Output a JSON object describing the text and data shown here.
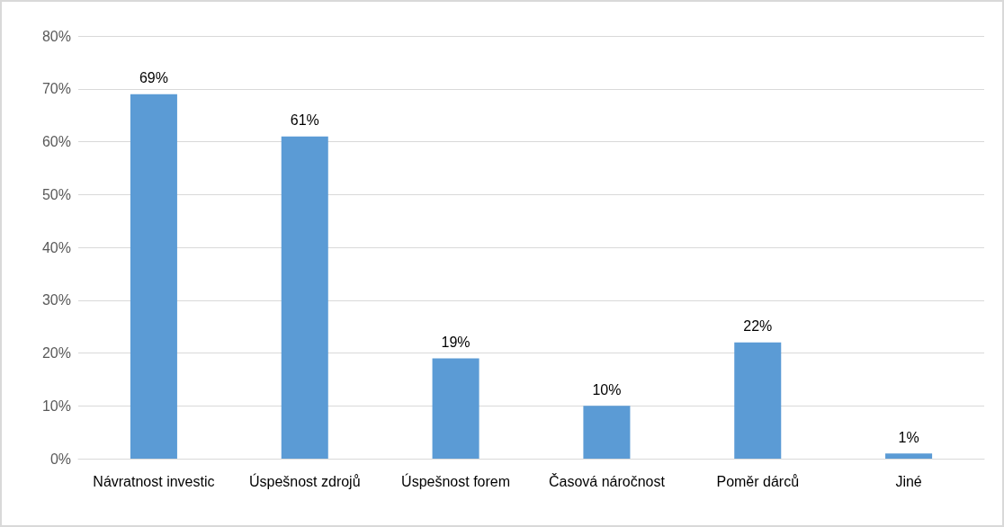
{
  "chart_data": {
    "type": "bar",
    "categories": [
      "Návratnost investic",
      "Úspešnost zdrojů",
      "Úspešnost forem",
      "Časová náročnost",
      "Poměr dárců",
      "Jiné"
    ],
    "values": [
      69,
      61,
      19,
      10,
      22,
      1
    ],
    "value_labels": [
      "69%",
      "61%",
      "19%",
      "10%",
      "22%",
      "1%"
    ],
    "color": "#5b9bd5",
    "ylim": [
      0,
      80
    ],
    "yticks": [
      {
        "value": 0,
        "label": "0%"
      },
      {
        "value": 10,
        "label": "10%"
      },
      {
        "value": 20,
        "label": "20%"
      },
      {
        "value": 30,
        "label": "30%"
      },
      {
        "value": 40,
        "label": "40%"
      },
      {
        "value": 50,
        "label": "50%"
      },
      {
        "value": 60,
        "label": "60%"
      },
      {
        "value": 70,
        "label": "70%"
      },
      {
        "value": 80,
        "label": "80%"
      }
    ],
    "grid": "y"
  }
}
